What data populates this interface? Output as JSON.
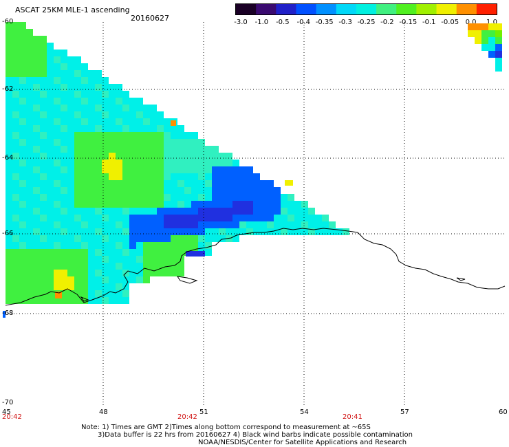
{
  "header": {
    "title": "ASCAT 25KM MLE-1 ascending",
    "date": "20160627"
  },
  "colorbar": {
    "ticks": [
      "-3.0",
      "-1.0",
      "-0.5",
      "-0.4",
      "-0.35",
      "-0.3",
      "-0.25",
      "-0.2",
      "-0.15",
      "-0.1",
      "-0.05",
      "0.0",
      "1.0"
    ],
    "colors": [
      "#1a0026",
      "#3a0a70",
      "#2020c8",
      "#0050ff",
      "#0090ff",
      "#00d8f8",
      "#00f0e0",
      "#40f080",
      "#50f020",
      "#a0f000",
      "#f0f000",
      "#ff9000",
      "#ff2000"
    ]
  },
  "axes": {
    "lon_labels": [
      "45",
      "48",
      "51",
      "54",
      "57",
      "60"
    ],
    "lat_labels": [
      "-60",
      "-62",
      "-64",
      "-66",
      "-68",
      "-70"
    ],
    "time_labels": [
      "20:42",
      "20:42",
      "20:41"
    ]
  },
  "notes": {
    "line1": "Note: 1) Times are GMT 2)Times along bottom correspond to measurement at ~65S",
    "line2": "3)Data buffer is 22 hrs from 20160627 4) Black wind barbs indicate possible contamination",
    "line3": "NOAA/NESDIS/Center for Satellite Applications and Research"
  },
  "map_colors": {
    "cyan": "#00f0e8",
    "aqua": "#30f0c0",
    "green": "#40f040",
    "lime": "#70f000",
    "yellow": "#f0f000",
    "orange": "#ff9000",
    "blue": "#0060ff",
    "deepblue": "#2030e0",
    "coast": "#000000"
  }
}
